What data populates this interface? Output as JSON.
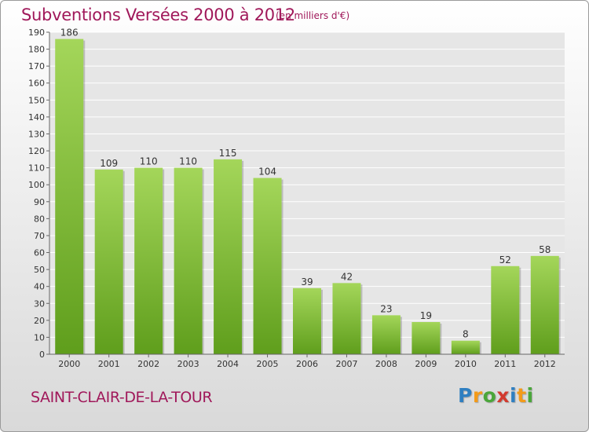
{
  "header": {
    "title": "Subventions Versées 2000 à 2012",
    "subtitle": "(en milliers d'€)"
  },
  "footer": {
    "commune": "SAINT-CLAIR-DE-LA-TOUR",
    "brand": {
      "letters": [
        "P",
        "r",
        "o",
        "x",
        "i",
        "t",
        "i"
      ],
      "colors": [
        "#2f7fc1",
        "#f39b1a",
        "#4aa63a",
        "#d23a2e",
        "#2f7fc1",
        "#f39b1a",
        "#4aa63a"
      ]
    }
  },
  "colors": {
    "bar_light": "#a4d65a",
    "bar_dark": "#5f9e1c",
    "grid": "#ffffff",
    "axis": "#666666",
    "text": "#333333",
    "accent": "#a0185a"
  },
  "chart_data": {
    "type": "bar",
    "title": "Subventions Versées 2000 à 2012",
    "subtitle": "(en milliers d'€)",
    "categories": [
      "2000",
      "2001",
      "2002",
      "2003",
      "2004",
      "2005",
      "2006",
      "2007",
      "2008",
      "2009",
      "2010",
      "2011",
      "2012"
    ],
    "values": [
      186,
      109,
      110,
      110,
      115,
      104,
      39,
      42,
      23,
      19,
      8,
      52,
      58
    ],
    "ylim": [
      0,
      190
    ],
    "yticks": [
      0,
      10,
      20,
      30,
      40,
      50,
      60,
      70,
      80,
      90,
      100,
      110,
      120,
      130,
      140,
      150,
      160,
      170,
      180,
      190
    ],
    "grid": true,
    "data_labels": true,
    "legend": "none"
  }
}
